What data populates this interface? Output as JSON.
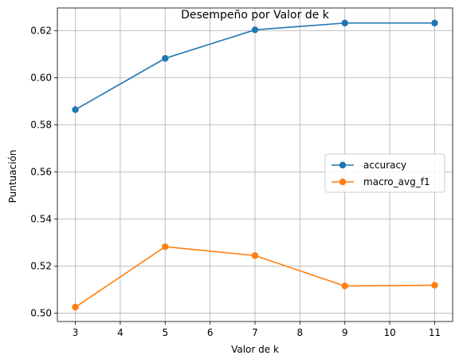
{
  "chart_data": {
    "type": "line",
    "title": "Desempeño por Valor de k",
    "xlabel": "Valor de k",
    "ylabel": "Puntuación",
    "x": [
      3,
      5,
      7,
      9,
      11
    ],
    "xlim": [
      2.6,
      11.4
    ],
    "ylim": [
      0.4965,
      0.6297
    ],
    "xticks": [
      3,
      4,
      5,
      6,
      7,
      8,
      9,
      10,
      11
    ],
    "yticks": [
      0.5,
      0.52,
      0.54,
      0.56,
      0.58,
      0.6,
      0.62
    ],
    "xtick_labels": [
      "3",
      "4",
      "5",
      "6",
      "7",
      "8",
      "9",
      "10",
      "11"
    ],
    "ytick_labels": [
      "0.50",
      "0.52",
      "0.54",
      "0.56",
      "0.58",
      "0.60",
      "0.62"
    ],
    "grid": true,
    "legend_position": "center-right",
    "series": [
      {
        "name": "accuracy",
        "color": "#1f77b4",
        "marker": "circle",
        "values": [
          0.5865,
          0.6083,
          0.6204,
          0.6233,
          0.6233
        ]
      },
      {
        "name": "macro_avg_f1",
        "color": "#ff7f0e",
        "marker": "circle",
        "values": [
          0.5026,
          0.5283,
          0.5245,
          0.5116,
          0.5119
        ]
      }
    ]
  }
}
